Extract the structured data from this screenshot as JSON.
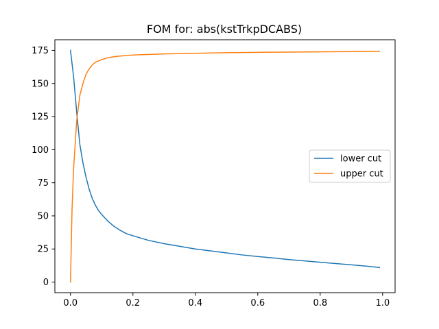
{
  "chart_data": {
    "type": "line",
    "title": "FOM for: abs(kstTrkpDCABS)",
    "xlabel": "",
    "ylabel": "",
    "xlim": [
      -0.05,
      1.04
    ],
    "ylim": [
      -8,
      183
    ],
    "x_ticks": [
      0.0,
      0.2,
      0.4,
      0.6,
      0.8,
      1.0
    ],
    "x_tick_labels": [
      "0.0",
      "0.2",
      "0.4",
      "0.6",
      "0.8",
      "1.0"
    ],
    "y_ticks": [
      0,
      25,
      50,
      75,
      100,
      125,
      150,
      175
    ],
    "y_tick_labels": [
      "0",
      "25",
      "50",
      "75",
      "100",
      "125",
      "150",
      "175"
    ],
    "grid": false,
    "legend_position": "center-right",
    "series": [
      {
        "name": "lower cut",
        "color": "#1f77b4",
        "x": [
          0.0,
          0.01,
          0.02,
          0.03,
          0.04,
          0.05,
          0.06,
          0.07,
          0.08,
          0.09,
          0.1,
          0.12,
          0.14,
          0.16,
          0.18,
          0.2,
          0.25,
          0.3,
          0.35,
          0.4,
          0.45,
          0.5,
          0.55,
          0.6,
          0.65,
          0.7,
          0.75,
          0.8,
          0.85,
          0.9,
          0.95,
          0.99
        ],
        "y": [
          175,
          155,
          128,
          104,
          90,
          79,
          70,
          63,
          58,
          54,
          51,
          46,
          42,
          39,
          36.5,
          35,
          31.5,
          29,
          27,
          25,
          23.5,
          22,
          20.5,
          19.3,
          18.2,
          17,
          16,
          15,
          14,
          13,
          12,
          11
        ]
      },
      {
        "name": "upper cut",
        "color": "#ff7f0e",
        "x": [
          0.0,
          0.005,
          0.01,
          0.02,
          0.03,
          0.04,
          0.05,
          0.06,
          0.07,
          0.08,
          0.09,
          0.1,
          0.12,
          0.15,
          0.2,
          0.3,
          0.4,
          0.5,
          0.6,
          0.7,
          0.8,
          0.9,
          0.99
        ],
        "y": [
          0,
          55,
          86,
          122,
          141,
          150,
          157,
          161,
          164,
          166,
          167,
          168,
          169.5,
          170.5,
          171.5,
          172.3,
          172.8,
          173.2,
          173.5,
          173.7,
          173.9,
          174.1,
          174.2
        ]
      }
    ]
  }
}
